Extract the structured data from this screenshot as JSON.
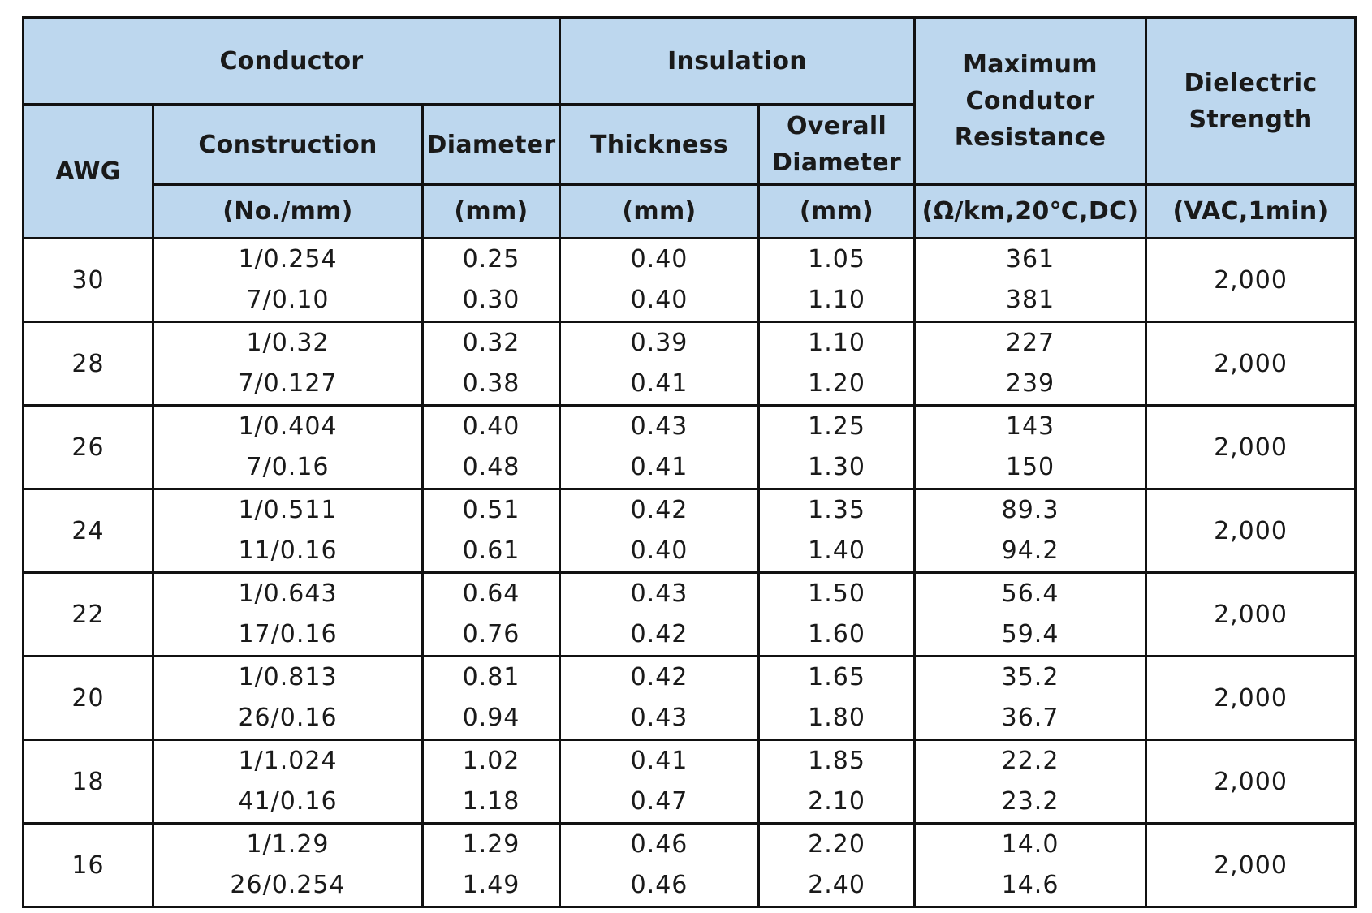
{
  "header": {
    "conductor": "Conductor",
    "insulation": "Insulation",
    "max_resistance_lines": [
      "Maximum",
      "Condutor",
      "Resistance"
    ],
    "dielectric_lines": [
      "Dielectric",
      "Strength"
    ],
    "awg": "AWG",
    "construction": "Construction",
    "diameter": "Diameter",
    "thickness": "Thickness",
    "overall_diameter_lines": [
      "Overall",
      "Diameter"
    ],
    "units": {
      "construction": "(No./mm)",
      "diameter": "(mm)",
      "thickness": "(mm)",
      "overall_diameter": "(mm)",
      "resistance": "(Ω/km,20℃,DC)",
      "dielectric": "(VAC,1min)"
    }
  },
  "rows": [
    {
      "awg": "30",
      "construction": [
        "1/0.254",
        "7/0.10"
      ],
      "diameter": [
        "0.25",
        "0.30"
      ],
      "thickness": [
        "0.40",
        "0.40"
      ],
      "overall": [
        "1.05",
        "1.10"
      ],
      "resistance": [
        "361",
        "381"
      ],
      "dielectric": "2,000"
    },
    {
      "awg": "28",
      "construction": [
        "1/0.32",
        "7/0.127"
      ],
      "diameter": [
        "0.32",
        "0.38"
      ],
      "thickness": [
        "0.39",
        "0.41"
      ],
      "overall": [
        "1.10",
        "1.20"
      ],
      "resistance": [
        "227",
        "239"
      ],
      "dielectric": "2,000"
    },
    {
      "awg": "26",
      "construction": [
        "1/0.404",
        "7/0.16"
      ],
      "diameter": [
        "0.40",
        "0.48"
      ],
      "thickness": [
        "0.43",
        "0.41"
      ],
      "overall": [
        "1.25",
        "1.30"
      ],
      "resistance": [
        "143",
        "150"
      ],
      "dielectric": "2,000"
    },
    {
      "awg": "24",
      "construction": [
        "1/0.511",
        "11/0.16"
      ],
      "diameter": [
        "0.51",
        "0.61"
      ],
      "thickness": [
        "0.42",
        "0.40"
      ],
      "overall": [
        "1.35",
        "1.40"
      ],
      "resistance": [
        "89.3",
        "94.2"
      ],
      "dielectric": "2,000"
    },
    {
      "awg": "22",
      "construction": [
        "1/0.643",
        "17/0.16"
      ],
      "diameter": [
        "0.64",
        "0.76"
      ],
      "thickness": [
        "0.43",
        "0.42"
      ],
      "overall": [
        "1.50",
        "1.60"
      ],
      "resistance": [
        "56.4",
        "59.4"
      ],
      "dielectric": "2,000"
    },
    {
      "awg": "20",
      "construction": [
        "1/0.813",
        "26/0.16"
      ],
      "diameter": [
        "0.81",
        "0.94"
      ],
      "thickness": [
        "0.42",
        "0.43"
      ],
      "overall": [
        "1.65",
        "1.80"
      ],
      "resistance": [
        "35.2",
        "36.7"
      ],
      "dielectric": "2,000"
    },
    {
      "awg": "18",
      "construction": [
        "1/1.024",
        "41/0.16"
      ],
      "diameter": [
        "1.02",
        "1.18"
      ],
      "thickness": [
        "0.41",
        "0.47"
      ],
      "overall": [
        "1.85",
        "2.10"
      ],
      "resistance": [
        "22.2",
        "23.2"
      ],
      "dielectric": "2,000"
    },
    {
      "awg": "16",
      "construction": [
        "1/1.29",
        "26/0.254"
      ],
      "diameter": [
        "1.29",
        "1.49"
      ],
      "thickness": [
        "0.46",
        "0.46"
      ],
      "overall": [
        "2.20",
        "2.40"
      ],
      "resistance": [
        "14.0",
        "14.6"
      ],
      "dielectric": "2,000"
    }
  ],
  "colors": {
    "header_bg": "#bdd7ee",
    "border": "#111111",
    "text": "#1a1a1a"
  }
}
